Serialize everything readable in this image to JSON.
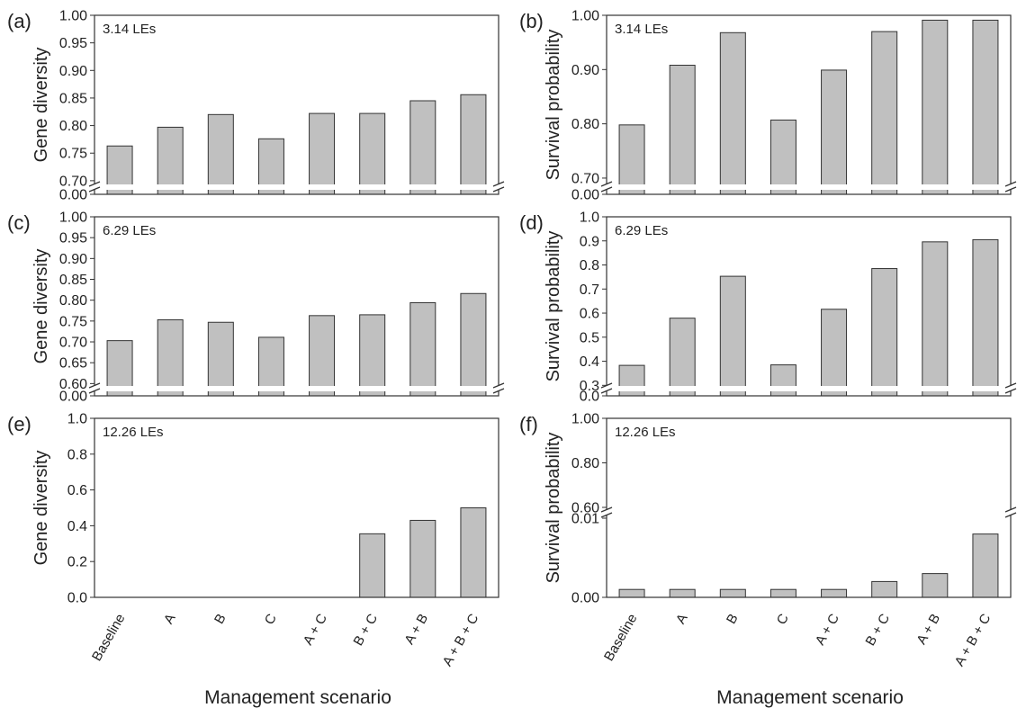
{
  "figure": {
    "xlabel": "Management scenario"
  },
  "chart_data": [
    {
      "type": "bar",
      "panel_label": "(a)",
      "corner_text": "3.14 LEs",
      "ylabel": "Gene diversity",
      "categories": [
        "Baseline",
        "A",
        "B",
        "C",
        "A + C",
        "B + C",
        "A + B",
        "A + B + C"
      ],
      "values": [
        0.763,
        0.797,
        0.82,
        0.776,
        0.822,
        0.822,
        0.845,
        0.856
      ],
      "ylim": [
        0.69,
        1.0
      ],
      "axis_break": true,
      "yticks": [
        "0.70",
        "0.75",
        "0.80",
        "0.85",
        "0.90",
        "0.95",
        "1.00"
      ],
      "below_break_tick": "0.00",
      "bar_color": "#c0c0c0"
    },
    {
      "type": "bar",
      "panel_label": "(b)",
      "corner_text": "3.14 LEs",
      "ylabel": "Survival probability",
      "categories": [
        "Baseline",
        "A",
        "B",
        "C",
        "A + C",
        "B + C",
        "A + B",
        "A + B + C"
      ],
      "values": [
        0.798,
        0.908,
        0.968,
        0.807,
        0.899,
        0.97,
        0.991,
        0.991
      ],
      "ylim": [
        0.685,
        1.0
      ],
      "axis_break": true,
      "yticks": [
        "0.70",
        "0.80",
        "0.90",
        "1.00"
      ],
      "below_break_tick": "0.00",
      "bar_color": "#c0c0c0"
    },
    {
      "type": "bar",
      "panel_label": "(c)",
      "corner_text": "6.29 LEs",
      "ylabel": "Gene diversity",
      "categories": [
        "Baseline",
        "A",
        "B",
        "C",
        "A + C",
        "B + C",
        "A + B",
        "A + B + C"
      ],
      "values": [
        0.703,
        0.753,
        0.747,
        0.711,
        0.763,
        0.765,
        0.794,
        0.816
      ],
      "ylim": [
        0.59,
        1.0
      ],
      "axis_break": true,
      "yticks": [
        "0.60",
        "0.65",
        "0.70",
        "0.75",
        "0.80",
        "0.85",
        "0.90",
        "0.95",
        "1.00"
      ],
      "below_break_tick": "0.00",
      "bar_color": "#c0c0c0"
    },
    {
      "type": "bar",
      "panel_label": "(d)",
      "corner_text": "6.29 LEs",
      "ylabel": "Survival probability",
      "categories": [
        "Baseline",
        "A",
        "B",
        "C",
        "A + C",
        "B + C",
        "A + B",
        "A + B + C"
      ],
      "values": [
        0.383,
        0.579,
        0.753,
        0.385,
        0.616,
        0.785,
        0.896,
        0.905
      ],
      "ylim": [
        0.29,
        1.0
      ],
      "axis_break": true,
      "yticks": [
        "0.3",
        "0.4",
        "0.5",
        "0.6",
        "0.7",
        "0.8",
        "0.9",
        "1.0"
      ],
      "below_break_tick": "0.0",
      "bar_color": "#c0c0c0"
    },
    {
      "type": "bar",
      "panel_label": "(e)",
      "corner_text": "12.26 LEs",
      "ylabel": "Gene diversity",
      "categories": [
        "Baseline",
        "A",
        "B",
        "C",
        "A + C",
        "B + C",
        "A + B",
        "A + B + C"
      ],
      "values": [
        0,
        0,
        0,
        0,
        0,
        0.355,
        0.43,
        0.5
      ],
      "ylim": [
        0,
        1.0
      ],
      "axis_break": false,
      "yticks": [
        "0.0",
        "0.2",
        "0.4",
        "0.6",
        "0.8",
        "1.0"
      ],
      "bar_color": "#c0c0c0"
    },
    {
      "type": "bar",
      "panel_label": "(f)",
      "corner_text": "12.26 LEs",
      "ylabel": "Survival probability",
      "categories": [
        "Baseline",
        "A",
        "B",
        "C",
        "A + C",
        "B + C",
        "A + B",
        "A + B + C"
      ],
      "values": [
        0.001,
        0.001,
        0.001,
        0.001,
        0.001,
        0.002,
        0.003,
        0.008
      ],
      "ylim": [
        0,
        1.0
      ],
      "axis_break": true,
      "upper_segment_ylim": [
        0.6,
        1.0
      ],
      "lower_segment_ylim": [
        0,
        0.01
      ],
      "yticks_upper": [
        "0.60",
        "0.80",
        "1.00"
      ],
      "yticks_lower": [
        "0.00",
        "0.01"
      ],
      "bar_color": "#c0c0c0"
    }
  ]
}
